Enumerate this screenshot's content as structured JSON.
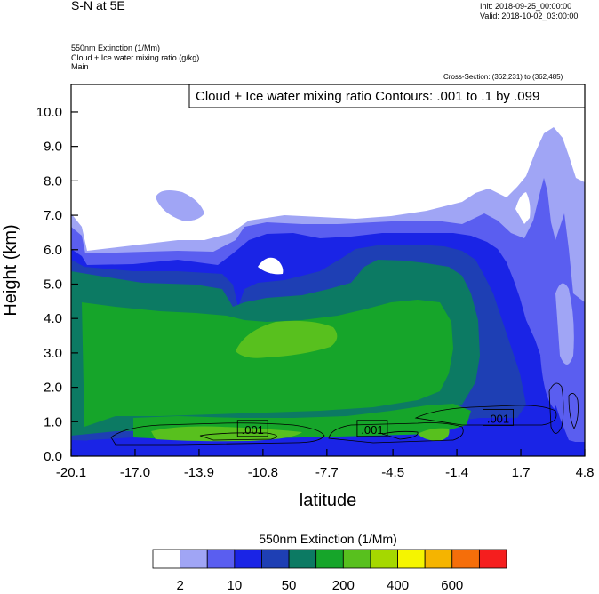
{
  "header": {
    "title": "S-N at 5E",
    "init": "Init: 2018-09-25_00:00:00",
    "valid": "Valid: 2018-10-02_03:00:00",
    "field1": "550nm Extinction   (1/Mm)",
    "field2": "Cloud + Ice water mixing ratio   (g/kg)",
    "field3": "Main",
    "cross_section": "Cross-Section: (362,231) to (362,485)"
  },
  "chart_data": {
    "type": "heatmap",
    "title": "S-N at 5E",
    "xlabel": "latitude",
    "ylabel": "Height (km)",
    "contour_label": "Cloud + Ice water mixing ratio Contours: .001 to .1 by .099",
    "x_ticks": [
      "-20.1",
      "-17.0",
      "-13.9",
      "-10.8",
      "-7.7",
      "-4.5",
      "-1.4",
      "1.7",
      "4.8"
    ],
    "x_tick_values": [
      -20.1,
      -17.0,
      -13.9,
      -10.8,
      -7.7,
      -4.5,
      -1.4,
      1.7,
      4.8
    ],
    "y_ticks": [
      "0.0",
      "1.0",
      "2.0",
      "3.0",
      "4.0",
      "5.0",
      "6.0",
      "7.0",
      "8.0",
      "9.0",
      "10.0"
    ],
    "y_tick_values": [
      0,
      1,
      2,
      3,
      4,
      5,
      6,
      7,
      8,
      9,
      10
    ],
    "xlim": [
      -20.1,
      4.8
    ],
    "ylim": [
      0,
      10.8
    ],
    "contour_labels": [
      {
        "text": ".001",
        "x": -11.3,
        "y": 0.78
      },
      {
        "text": ".001",
        "x": -5.5,
        "y": 0.78
      },
      {
        "text": ".001",
        "x": 0.6,
        "y": 1.1
      }
    ],
    "colorbar": {
      "title": "550nm Extinction  (1/Mm)",
      "colors": [
        "#ffffff",
        "#a0a5f5",
        "#5a5ef0",
        "#1a24e6",
        "#1e3fb4",
        "#0c7a63",
        "#16a52a",
        "#58c01e",
        "#a5d800",
        "#f5f500",
        "#f5b400",
        "#f56e0a",
        "#f51e1e"
      ],
      "labels": [
        "2",
        "10",
        "50",
        "200",
        "400",
        "600"
      ]
    }
  }
}
